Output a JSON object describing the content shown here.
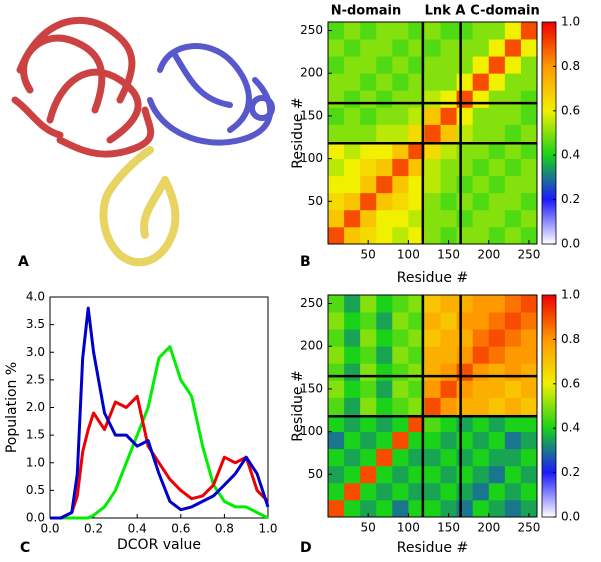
{
  "image_panel": {
    "label": "A"
  },
  "chart_data": [
    {
      "type": "heatmap",
      "panel_label": "B",
      "x_label": "Residue #",
      "y_label": "Residue #",
      "annotations": [
        "N-domain",
        "Lnk A",
        "C-domain"
      ],
      "xlim": [
        0,
        260
      ],
      "ylim": [
        0,
        260
      ],
      "xticks": [
        50,
        100,
        150,
        200,
        250
      ],
      "yticks": [
        50,
        100,
        150,
        200,
        250
      ],
      "xbins": [
        0,
        20,
        40,
        60,
        80,
        100,
        120,
        140,
        160,
        180,
        200,
        220,
        240,
        260
      ],
      "ybins": [
        0,
        20,
        40,
        60,
        80,
        100,
        120,
        140,
        160,
        180,
        200,
        220,
        240,
        260
      ],
      "boundaries": [
        118,
        165
      ],
      "colormap": [
        {
          "value": 0,
          "color": "#ffffff"
        },
        {
          "value": 0.2,
          "color": "#1a1aff"
        },
        {
          "value": 0.4,
          "color": "#19d219"
        },
        {
          "value": 0.6,
          "color": "#f0f000"
        },
        {
          "value": 0.8,
          "color": "#ff9900"
        },
        {
          "value": 1.0,
          "color": "#ee0000"
        }
      ],
      "clim": [
        0,
        1.0
      ],
      "cticks": [
        {
          "value": 0,
          "label": "0.0"
        },
        {
          "value": 0.2,
          "label": "0.2"
        },
        {
          "value": 0.4,
          "label": "0.4"
        },
        {
          "value": 0.6,
          "label": "0.6"
        },
        {
          "value": 0.8,
          "label": "0.8"
        },
        {
          "value": 1.0,
          "label": "1.0"
        }
      ],
      "z": [
        [
          0.9,
          0.7,
          0.65,
          0.6,
          0.55,
          0.6,
          0.5,
          0.45,
          0.5,
          0.5,
          0.45,
          0.5,
          0.45
        ],
        [
          0.7,
          0.9,
          0.7,
          0.6,
          0.6,
          0.55,
          0.5,
          0.5,
          0.45,
          0.5,
          0.5,
          0.45,
          0.5
        ],
        [
          0.65,
          0.7,
          0.9,
          0.7,
          0.65,
          0.6,
          0.5,
          0.45,
          0.5,
          0.45,
          0.5,
          0.5,
          0.45
        ],
        [
          0.6,
          0.6,
          0.7,
          0.9,
          0.7,
          0.6,
          0.55,
          0.5,
          0.45,
          0.5,
          0.45,
          0.5,
          0.5
        ],
        [
          0.55,
          0.6,
          0.65,
          0.7,
          0.9,
          0.7,
          0.55,
          0.5,
          0.5,
          0.45,
          0.5,
          0.45,
          0.5
        ],
        [
          0.6,
          0.55,
          0.6,
          0.6,
          0.7,
          0.9,
          0.65,
          0.55,
          0.5,
          0.5,
          0.45,
          0.5,
          0.45
        ],
        [
          0.5,
          0.5,
          0.5,
          0.55,
          0.55,
          0.65,
          0.9,
          0.7,
          0.55,
          0.5,
          0.5,
          0.45,
          0.5
        ],
        [
          0.45,
          0.5,
          0.45,
          0.5,
          0.5,
          0.55,
          0.7,
          0.9,
          0.6,
          0.5,
          0.5,
          0.5,
          0.45
        ],
        [
          0.5,
          0.45,
          0.5,
          0.45,
          0.5,
          0.5,
          0.55,
          0.6,
          0.9,
          0.6,
          0.5,
          0.5,
          0.45
        ],
        [
          0.5,
          0.5,
          0.45,
          0.5,
          0.45,
          0.5,
          0.5,
          0.5,
          0.6,
          0.9,
          0.6,
          0.5,
          0.5
        ],
        [
          0.45,
          0.5,
          0.5,
          0.45,
          0.5,
          0.45,
          0.5,
          0.5,
          0.5,
          0.6,
          0.9,
          0.6,
          0.5
        ],
        [
          0.5,
          0.45,
          0.5,
          0.5,
          0.45,
          0.5,
          0.45,
          0.5,
          0.5,
          0.5,
          0.6,
          0.9,
          0.6
        ],
        [
          0.45,
          0.5,
          0.45,
          0.5,
          0.5,
          0.45,
          0.5,
          0.45,
          0.45,
          0.5,
          0.5,
          0.6,
          0.9
        ]
      ]
    },
    {
      "type": "line",
      "panel_label": "C",
      "x_label": "DCOR value",
      "y_label": "Population %",
      "xlim": [
        0,
        1.0
      ],
      "ylim": [
        0,
        4.0
      ],
      "xticks": [
        {
          "value": 0,
          "label": "0.0"
        },
        {
          "value": 0.2,
          "label": "0.2"
        },
        {
          "value": 0.4,
          "label": "0.4"
        },
        {
          "value": 0.6,
          "label": "0.6"
        },
        {
          "value": 0.8,
          "label": "0.8"
        },
        {
          "value": 1.0,
          "label": "1.0"
        }
      ],
      "yticks": [
        {
          "value": 0,
          "label": "0.0"
        },
        {
          "value": 0.5,
          "label": "0.5"
        },
        {
          "value": 1.0,
          "label": "1.0"
        },
        {
          "value": 1.5,
          "label": "1.5"
        },
        {
          "value": 2.0,
          "label": "2.0"
        },
        {
          "value": 2.5,
          "label": "2.5"
        },
        {
          "value": 3.0,
          "label": "3.0"
        },
        {
          "value": 3.5,
          "label": "3.5"
        },
        {
          "value": 4.0,
          "label": "4.0"
        }
      ],
      "x": [
        0,
        0.05,
        0.1,
        0.125,
        0.15,
        0.175,
        0.2,
        0.25,
        0.3,
        0.35,
        0.4,
        0.45,
        0.5,
        0.55,
        0.6,
        0.65,
        0.7,
        0.75,
        0.8,
        0.85,
        0.9,
        0.95,
        1.0
      ],
      "series": [
        {
          "color": "#00ee00",
          "values": [
            0,
            0,
            0,
            0,
            0,
            0,
            0.05,
            0.2,
            0.5,
            1.0,
            1.5,
            2.0,
            2.9,
            3.1,
            2.5,
            2.2,
            1.3,
            0.6,
            0.3,
            0.2,
            0.2,
            0.1,
            0
          ]
        },
        {
          "color": "#ee0000",
          "values": [
            0,
            0,
            0.1,
            0.4,
            1.2,
            1.6,
            1.9,
            1.6,
            2.1,
            2.0,
            2.2,
            1.3,
            1.0,
            0.7,
            0.5,
            0.35,
            0.4,
            0.6,
            1.1,
            1.0,
            1.1,
            0.5,
            0.3
          ]
        },
        {
          "color": "#0000cc",
          "values": [
            0,
            0,
            0.1,
            0.8,
            2.9,
            3.8,
            3.0,
            1.9,
            1.5,
            1.5,
            1.3,
            1.4,
            0.8,
            0.3,
            0.15,
            0.2,
            0.3,
            0.4,
            0.6,
            0.8,
            1.1,
            0.8,
            0.2
          ]
        }
      ]
    },
    {
      "type": "heatmap",
      "panel_label": "D",
      "x_label": "Residue #",
      "y_label": "Residue #",
      "xlim": [
        0,
        260
      ],
      "ylim": [
        0,
        260
      ],
      "xticks": [
        50,
        100,
        150,
        200,
        250
      ],
      "yticks": [
        50,
        100,
        150,
        200,
        250
      ],
      "xbins": [
        0,
        20,
        40,
        60,
        80,
        100,
        120,
        140,
        160,
        180,
        200,
        220,
        240,
        260
      ],
      "ybins": [
        0,
        20,
        40,
        60,
        80,
        100,
        120,
        140,
        160,
        180,
        200,
        220,
        240,
        260
      ],
      "boundaries": [
        118,
        165
      ],
      "colormap": [
        {
          "value": 0,
          "color": "#ffffff"
        },
        {
          "value": 0.2,
          "color": "#1a1aff"
        },
        {
          "value": 0.4,
          "color": "#19d219"
        },
        {
          "value": 0.6,
          "color": "#f0f000"
        },
        {
          "value": 0.8,
          "color": "#ff9900"
        },
        {
          "value": 1.0,
          "color": "#ee0000"
        }
      ],
      "clim": [
        0,
        1.0
      ],
      "cticks": [
        {
          "value": 0,
          "label": "0.0"
        },
        {
          "value": 0.2,
          "label": "0.2"
        },
        {
          "value": 0.4,
          "label": "0.4"
        },
        {
          "value": 0.6,
          "label": "0.6"
        },
        {
          "value": 0.8,
          "label": "0.8"
        },
        {
          "value": 1.0,
          "label": "1.0"
        }
      ],
      "z": [
        [
          0.9,
          0.4,
          0.35,
          0.4,
          0.3,
          0.4,
          0.4,
          0.35,
          0.3,
          0.4,
          0.35,
          0.3,
          0.35
        ],
        [
          0.4,
          0.9,
          0.4,
          0.35,
          0.4,
          0.35,
          0.35,
          0.4,
          0.35,
          0.3,
          0.4,
          0.35,
          0.4
        ],
        [
          0.35,
          0.4,
          0.9,
          0.4,
          0.35,
          0.4,
          0.4,
          0.35,
          0.4,
          0.35,
          0.3,
          0.4,
          0.35
        ],
        [
          0.4,
          0.35,
          0.4,
          0.9,
          0.4,
          0.35,
          0.35,
          0.4,
          0.35,
          0.4,
          0.35,
          0.35,
          0.4
        ],
        [
          0.3,
          0.4,
          0.35,
          0.4,
          0.9,
          0.4,
          0.4,
          0.35,
          0.4,
          0.35,
          0.4,
          0.3,
          0.35
        ],
        [
          0.4,
          0.35,
          0.4,
          0.35,
          0.4,
          0.9,
          0.45,
          0.4,
          0.35,
          0.4,
          0.35,
          0.4,
          0.4
        ],
        [
          0.45,
          0.35,
          0.5,
          0.4,
          0.45,
          0.5,
          0.9,
          0.8,
          0.75,
          0.75,
          0.7,
          0.75,
          0.7
        ],
        [
          0.5,
          0.4,
          0.45,
          0.35,
          0.5,
          0.45,
          0.8,
          0.9,
          0.8,
          0.75,
          0.75,
          0.7,
          0.75
        ],
        [
          0.45,
          0.35,
          0.5,
          0.4,
          0.45,
          0.5,
          0.75,
          0.8,
          0.9,
          0.8,
          0.75,
          0.8,
          0.75
        ],
        [
          0.5,
          0.4,
          0.45,
          0.35,
          0.5,
          0.45,
          0.75,
          0.75,
          0.8,
          0.9,
          0.85,
          0.8,
          0.8
        ],
        [
          0.45,
          0.35,
          0.5,
          0.4,
          0.45,
          0.5,
          0.7,
          0.75,
          0.75,
          0.85,
          0.9,
          0.85,
          0.8
        ],
        [
          0.5,
          0.4,
          0.45,
          0.35,
          0.5,
          0.45,
          0.75,
          0.7,
          0.8,
          0.8,
          0.85,
          0.9,
          0.85
        ],
        [
          0.45,
          0.35,
          0.5,
          0.4,
          0.45,
          0.5,
          0.7,
          0.75,
          0.75,
          0.8,
          0.8,
          0.85,
          0.9
        ]
      ]
    }
  ]
}
